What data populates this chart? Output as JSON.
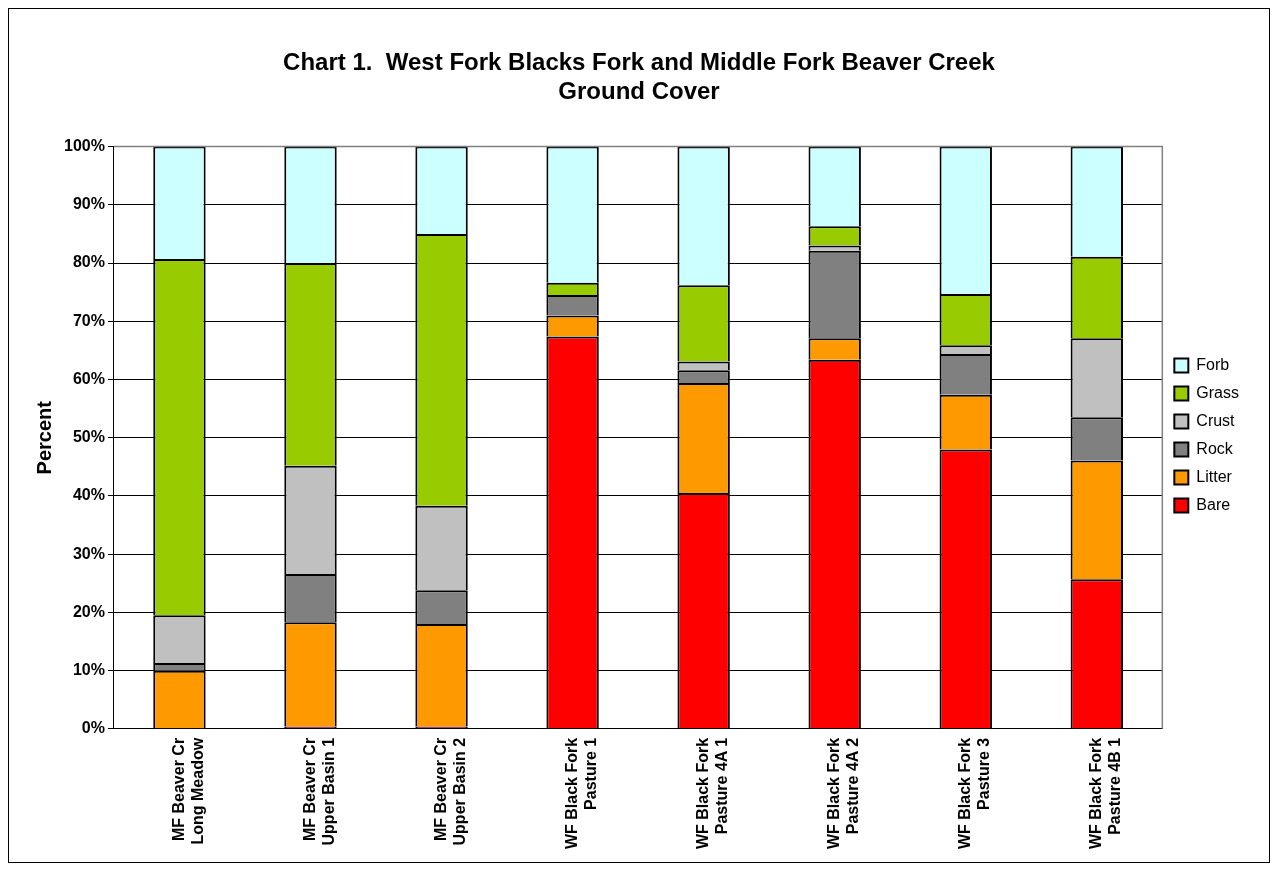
{
  "chart_data": {
    "type": "bar",
    "title": "Chart 1.  West Fork Blacks Fork and Middle Fork Beaver Creek Ground Cover",
    "ylabel": "Percent",
    "categories": [
      "MF Beaver Cr Long Meadow",
      "MF Beaver Cr Upper Basin 1",
      "MF Beaver Cr Upper Basin 2",
      "WF Black Fork Pasture 1",
      "WF Black Fork Pasture 4A 1",
      "WF Black Fork Pasture 4A 2",
      "WF Black Fork Pasture 3",
      "WF Black Fork Pasture 4B 1"
    ],
    "stacked": true,
    "series": [
      {
        "name": "Bare",
        "color": "#ff0000",
        "values": [
          0,
          0.4,
          0.4,
          67.4,
          40.5,
          63.4,
          48,
          25.7
        ]
      },
      {
        "name": "Litter",
        "color": "#ff9900",
        "values": [
          10,
          17.9,
          17.6,
          3.6,
          18.9,
          3.7,
          9.4,
          20.4
        ]
      },
      {
        "name": "Rock",
        "color": "#808080",
        "values": [
          1.3,
          8.3,
          5.8,
          3.5,
          2.2,
          15,
          7,
          7.4
        ]
      },
      {
        "name": "Crust",
        "color": "#c0c0c0",
        "values": [
          8.2,
          18.6,
          14.5,
          0,
          1.5,
          0.9,
          1.5,
          13.6
        ]
      },
      {
        "name": "Grass",
        "color": "#99cc00",
        "values": [
          61.2,
          34.8,
          46.7,
          2.1,
          13.1,
          3.3,
          8.8,
          14
        ]
      },
      {
        "name": "Forb",
        "color": "#ccffff",
        "values": [
          19.3,
          20,
          15,
          23.4,
          23.8,
          13.7,
          25.3,
          18.9
        ]
      }
    ],
    "ylim": [
      0,
      100
    ],
    "yticks": [
      {
        "value": 0,
        "label": "0%"
      },
      {
        "value": 10,
        "label": "10%"
      },
      {
        "value": 20,
        "label": "20%"
      },
      {
        "value": 30,
        "label": "30%"
      },
      {
        "value": 40,
        "label": "40%"
      },
      {
        "value": 50,
        "label": "50%"
      },
      {
        "value": 60,
        "label": "60%"
      },
      {
        "value": 70,
        "label": "70%"
      },
      {
        "value": 80,
        "label": "80%"
      },
      {
        "value": 90,
        "label": "90%"
      },
      {
        "value": 100,
        "label": "100%"
      }
    ],
    "grid": "y",
    "legend": "right"
  }
}
